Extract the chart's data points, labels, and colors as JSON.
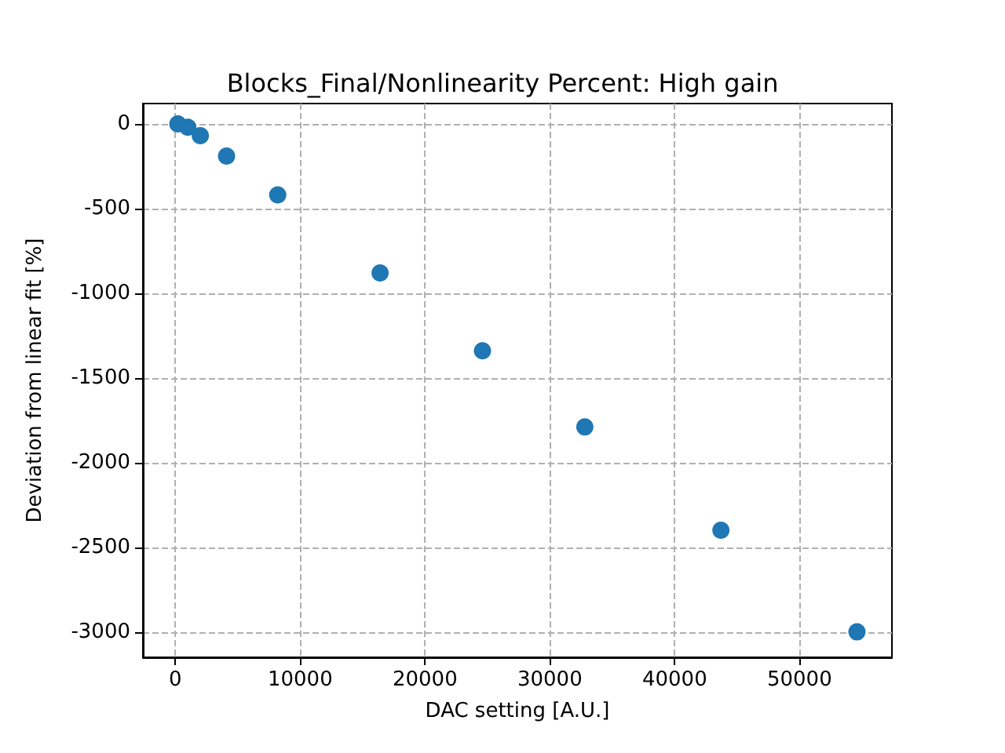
{
  "chart_data": {
    "type": "scatter",
    "title": "Blocks_Final/Nonlinearity Percent: High gain",
    "xlabel": "DAC setting [A.U.]",
    "ylabel": "Deviation from linear fit [%]",
    "x": [
      200,
      1000,
      2000,
      4100,
      8200,
      16400,
      24600,
      32800,
      43700,
      54600
    ],
    "series": [
      {
        "color": "#1f77b4",
        "values": [
          0,
          -20,
          -70,
          -190,
          -420,
          -880,
          -1340,
          -1790,
          -2400,
          -3000
        ]
      }
    ],
    "xlim": [
      -2600,
      57400
    ],
    "ylim": [
      -3150,
      120
    ],
    "xticks": [
      0,
      10000,
      20000,
      30000,
      40000,
      50000
    ],
    "yticks": [
      -3000,
      -2500,
      -2000,
      -1500,
      -1000,
      -500,
      0
    ],
    "grid": true,
    "marker": "circle"
  }
}
